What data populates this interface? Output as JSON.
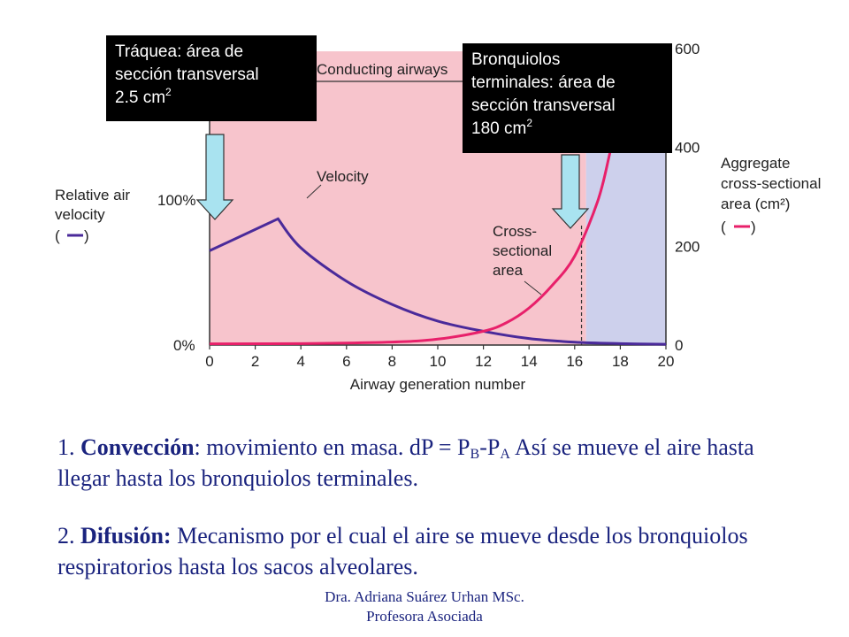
{
  "chart_data": {
    "type": "line",
    "xlabel": "Airway generation number",
    "x_ticks": [
      0,
      2,
      4,
      6,
      8,
      10,
      12,
      14,
      16,
      18,
      20
    ],
    "xlim": [
      0,
      20
    ],
    "left_axis": {
      "label_lines": [
        "Relative air",
        "velocity",
        "( ",
        " )"
      ],
      "ticks": [
        "100%",
        "0%"
      ]
    },
    "right_axis": {
      "label_lines": [
        "Aggregate",
        "cross-sectional",
        "area (cm²)",
        "( ",
        " )"
      ],
      "ticks": [
        "600",
        "400",
        "200",
        "0"
      ],
      "ylim": [
        0,
        600
      ]
    },
    "zones": {
      "conducting_label": "Conducting airways",
      "conducting_end": 16.5,
      "conducting_color": "#f7c4cc",
      "respiratory_color": "#cdd0ec"
    },
    "series": [
      {
        "name": "Velocity",
        "color": "#4a2a9a",
        "x": [
          0,
          3,
          4,
          6,
          8,
          10,
          12,
          14,
          16,
          18,
          20
        ],
        "y": [
          65,
          87,
          67,
          44,
          28,
          16.5,
          9.5,
          4.5,
          2,
          1,
          0.5
        ]
      },
      {
        "name": "Cross-sectional area",
        "label_lines": [
          "Cross-",
          "sectional",
          "area"
        ],
        "color": "#e8206a",
        "x": [
          0,
          4,
          8,
          10,
          12,
          13,
          14,
          15,
          16,
          17,
          17.5,
          17.9
        ],
        "y": [
          2.5,
          3,
          6,
          12,
          28,
          45,
          75,
          120,
          180,
          290,
          380,
          470
        ]
      }
    ],
    "marker_x": 16.3
  },
  "callouts": {
    "trachea": {
      "lines": [
        "Tráquea: área de",
        "sección transversal"
      ],
      "value": "2.5 cm",
      "sup": "2"
    },
    "bronchioles": {
      "lines": [
        "Bronquiolos",
        "terminales: área de",
        "sección transversal"
      ],
      "value": "180 cm",
      "sup": "2"
    }
  },
  "paragraphs": {
    "p1": {
      "num": "1. ",
      "term": "Convección",
      "after_term": ": movimiento en masa. dP = P",
      "sub_b": "B",
      "dash": "-P",
      "sub_a": "A",
      "rest": " Así se mueve el aire hasta llegar hasta los bronquiolos terminales."
    },
    "p2": {
      "num": "2. ",
      "term": "Difusión:",
      "rest": " Mecanismo por el cual el aire se mueve desde los bronquiolos respiratorios hasta los sacos alveolares."
    }
  },
  "footer": {
    "line1": "Dra. Adriana Suárez Urhan MSc.",
    "line2": "Profesora Asociada"
  }
}
